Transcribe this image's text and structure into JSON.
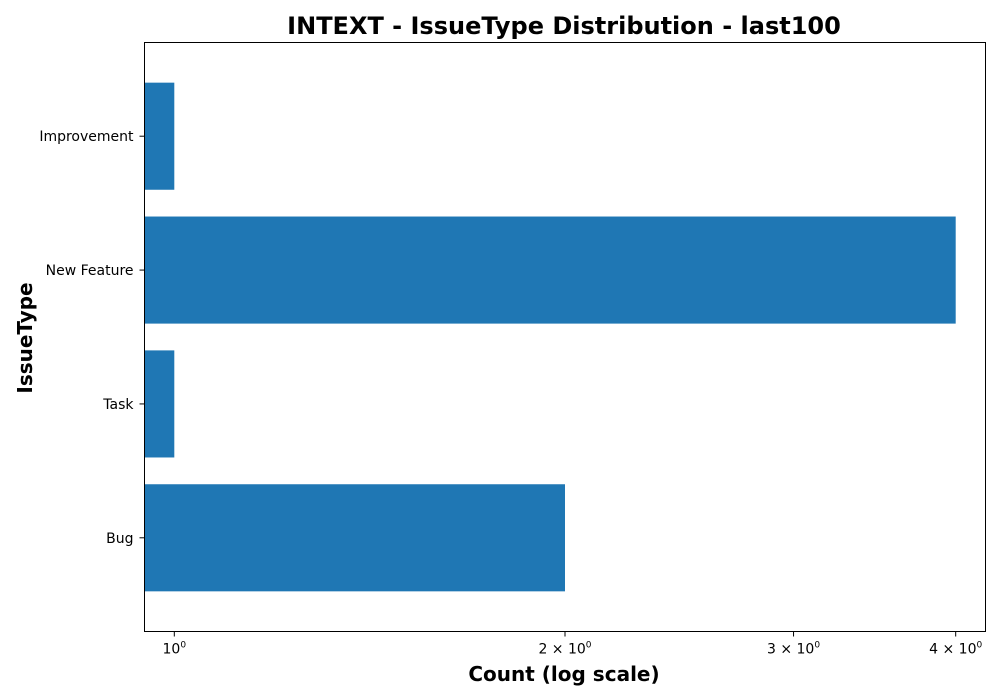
{
  "chart_data": {
    "type": "bar",
    "orientation": "horizontal",
    "title": "INTEXT - IssueType Distribution - last100",
    "xlabel": "Count (log scale)",
    "ylabel": "IssueType",
    "xscale": "log",
    "xlim": [
      0.9485,
      4.2172
    ],
    "categories": [
      "Bug",
      "Task",
      "New Feature",
      "Improvement"
    ],
    "values": [
      2,
      1,
      4,
      1
    ],
    "bar_color": "#1f77b4",
    "x_ticks": [
      {
        "value": 1,
        "mantissa": "",
        "base": "10",
        "exp": "0"
      },
      {
        "value": 2,
        "mantissa": "2 × ",
        "base": "10",
        "exp": "0"
      },
      {
        "value": 3,
        "mantissa": "3 × ",
        "base": "10",
        "exp": "0"
      },
      {
        "value": 4,
        "mantissa": "4 × ",
        "base": "10",
        "exp": "0"
      }
    ],
    "grid": false,
    "legend": "none"
  }
}
